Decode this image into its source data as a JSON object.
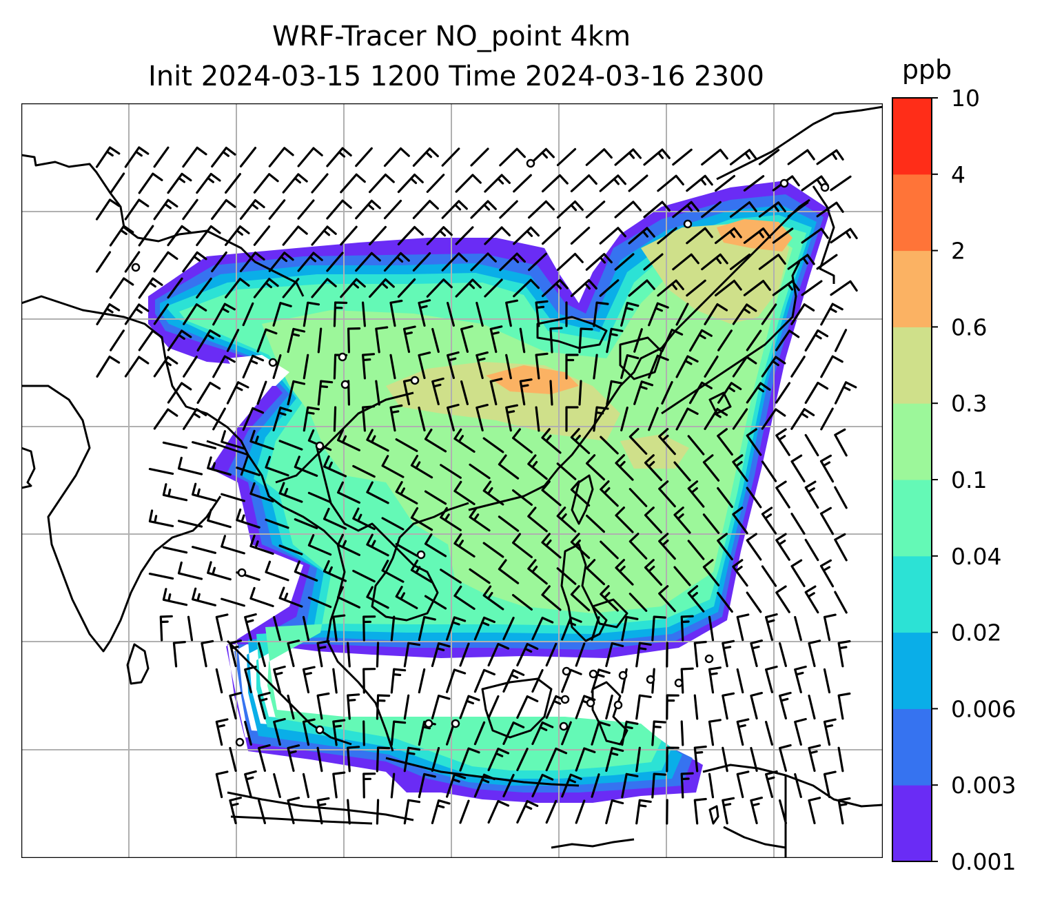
{
  "title": {
    "line1": "WRF-Tracer NO_point 4km",
    "line2": "Init 2024-03-15 1200 Time 2024-03-16 2300"
  },
  "colorbar": {
    "unit": "ppb",
    "levels": [
      "0.001",
      "0.003",
      "0.006",
      "0.02",
      "0.04",
      "0.1",
      "0.3",
      "0.6",
      "2",
      "4",
      "10"
    ],
    "colors": [
      "#6a2cf5",
      "#3673f0",
      "#0aaee8",
      "#2ce2d5",
      "#64f9b6",
      "#9cf79a",
      "#cfe08a",
      "#fbb263",
      "#ff7438",
      "#ff2d18"
    ]
  },
  "map": {
    "gridlines": true,
    "grid_color": "#b0b0b0",
    "features": [
      "coastlines",
      "country-borders",
      "tracer-concentration-filled-contours",
      "wind-barbs"
    ]
  }
}
